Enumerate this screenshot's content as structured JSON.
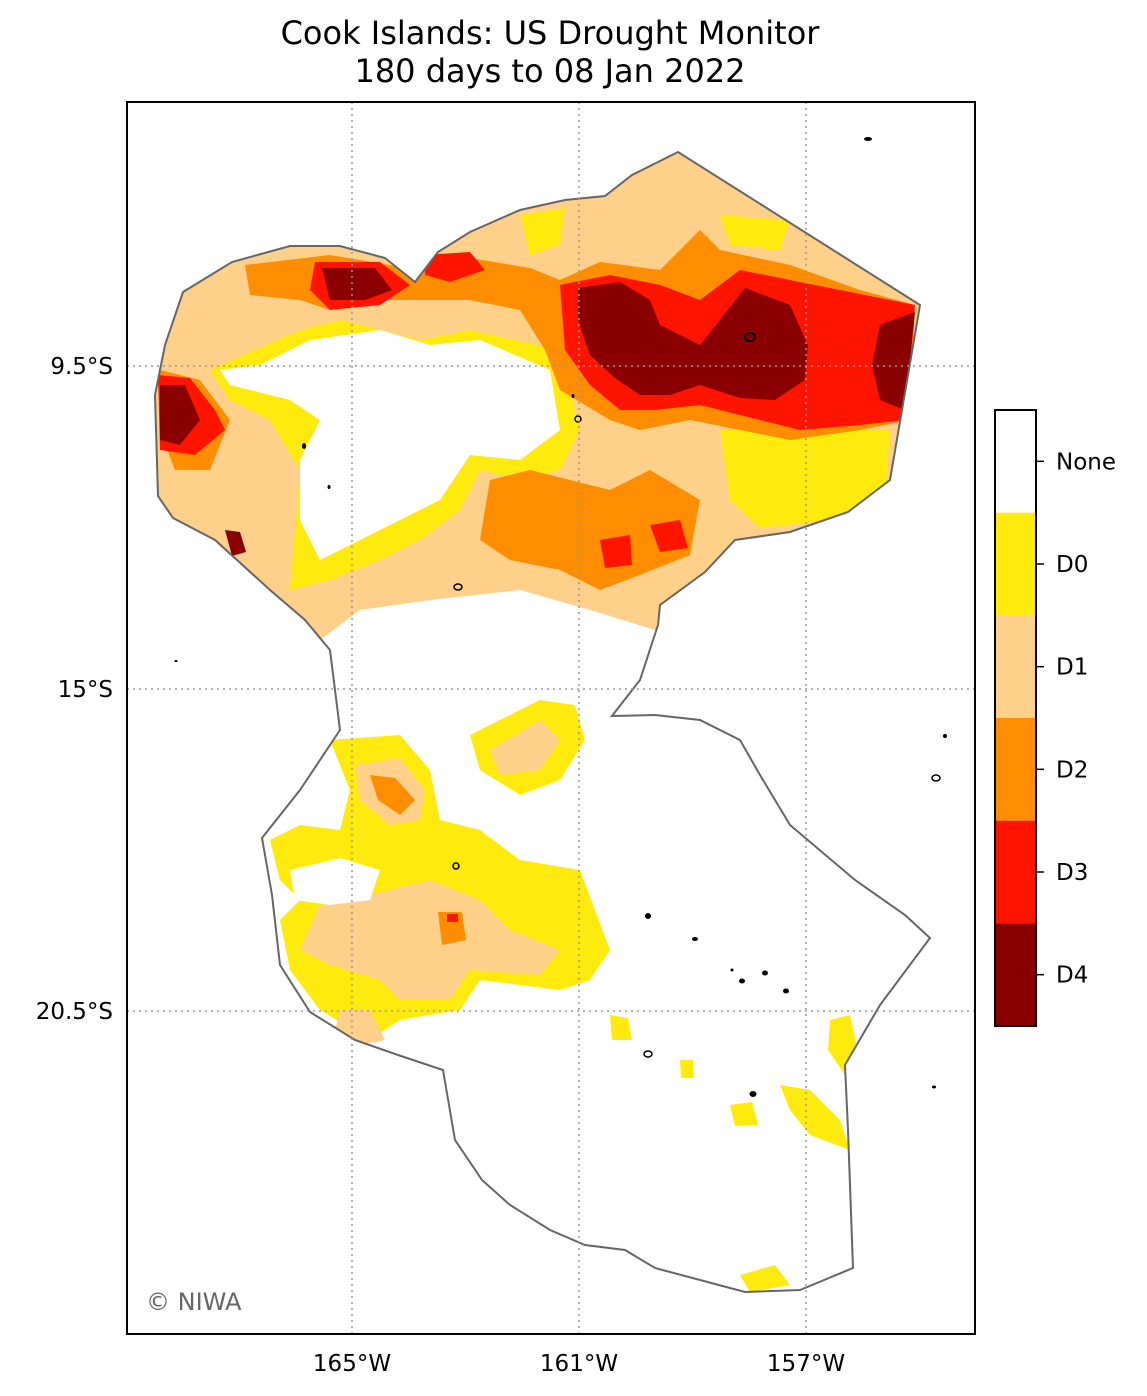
{
  "title": {
    "line1": "Cook Islands: US Drought Monitor",
    "line2": "180 days to 08 Jan 2022"
  },
  "axes": {
    "x_ticks": [
      "165°W",
      "161°W",
      "157°W"
    ],
    "y_ticks": [
      "9.5°S",
      "15°S",
      "20.5°S"
    ],
    "grid": "dotted"
  },
  "legend": {
    "placement": "right",
    "categories": [
      {
        "label": "None",
        "color": "#ffffff"
      },
      {
        "label": "D0",
        "color": "#ffea0e"
      },
      {
        "label": "D1",
        "color": "#fed08a"
      },
      {
        "label": "D2",
        "color": "#fe8d00"
      },
      {
        "label": "D3",
        "color": "#ff1400"
      },
      {
        "label": "D4",
        "color": "#8a0000"
      }
    ]
  },
  "credit": "© NIWA",
  "chart_data": {
    "type": "heatmap",
    "lon_ticks": [
      -165,
      -161,
      -157
    ],
    "lat_ticks": [
      -9.5,
      -15,
      -20.5
    ],
    "scale": [
      "None",
      "D0",
      "D1",
      "D2",
      "D3",
      "D4"
    ]
  }
}
